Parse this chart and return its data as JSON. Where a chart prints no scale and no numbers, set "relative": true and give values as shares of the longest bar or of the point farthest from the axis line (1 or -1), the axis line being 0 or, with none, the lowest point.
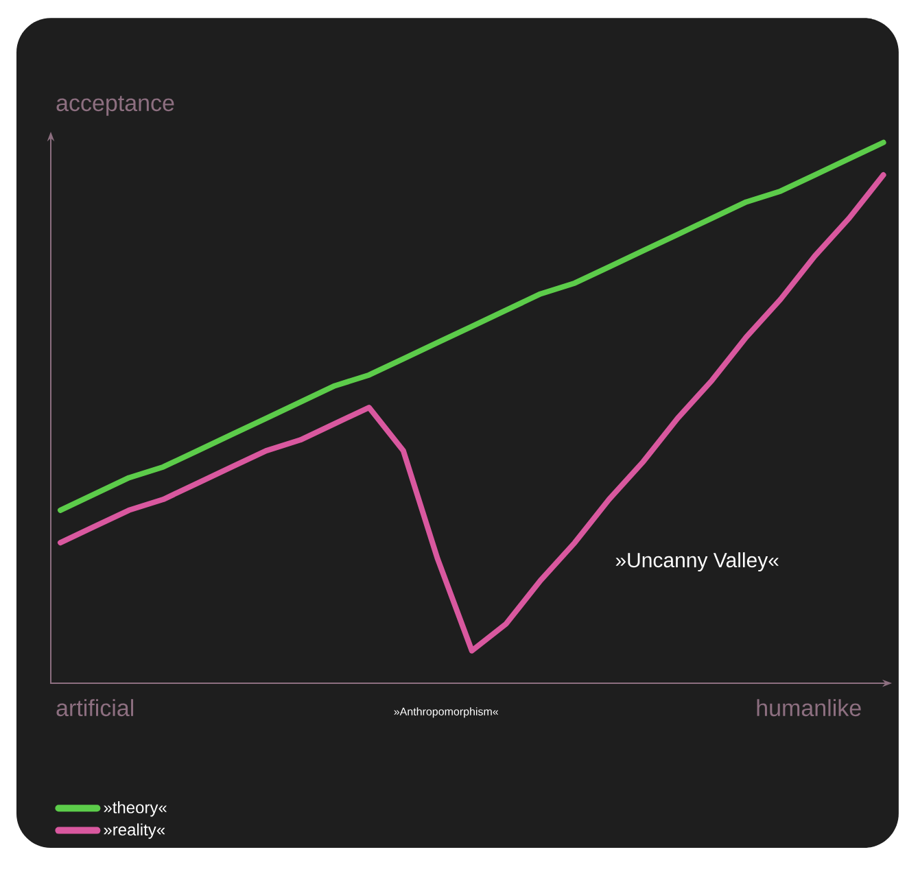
{
  "chart_data": {
    "type": "line",
    "relative": true,
    "ylabel": "acceptance",
    "xlabel": "»Anthropomorphism«",
    "annotations": [
      "artificial",
      "humanlike",
      "»Uncanny Valley«"
    ],
    "categories": [
      null,
      null,
      null,
      null,
      null,
      null,
      null,
      null,
      null,
      null,
      null,
      null,
      null,
      null,
      null,
      null,
      null,
      null,
      null,
      null,
      null,
      null,
      null,
      null,
      null
    ],
    "series": [
      {
        "name": "»theory«",
        "color": "#5ccc4a",
        "values": [
          0.32,
          0.35,
          0.38,
          0.4,
          0.43,
          0.46,
          0.49,
          0.52,
          0.55,
          0.57,
          0.6,
          0.63,
          0.66,
          0.69,
          0.72,
          0.74,
          0.77,
          0.8,
          0.83,
          0.86,
          0.89,
          0.91,
          0.94,
          0.97,
          1.0
        ]
      },
      {
        "name": "»reality«",
        "color": "#d9589f",
        "values": [
          0.26,
          0.29,
          0.32,
          0.34,
          0.37,
          0.4,
          0.43,
          0.45,
          0.48,
          0.51,
          0.43,
          0.23,
          0.06,
          0.11,
          0.19,
          0.26,
          0.34,
          0.41,
          0.49,
          0.56,
          0.64,
          0.71,
          0.79,
          0.86,
          0.94
        ]
      }
    ],
    "legend": "bottom left"
  }
}
